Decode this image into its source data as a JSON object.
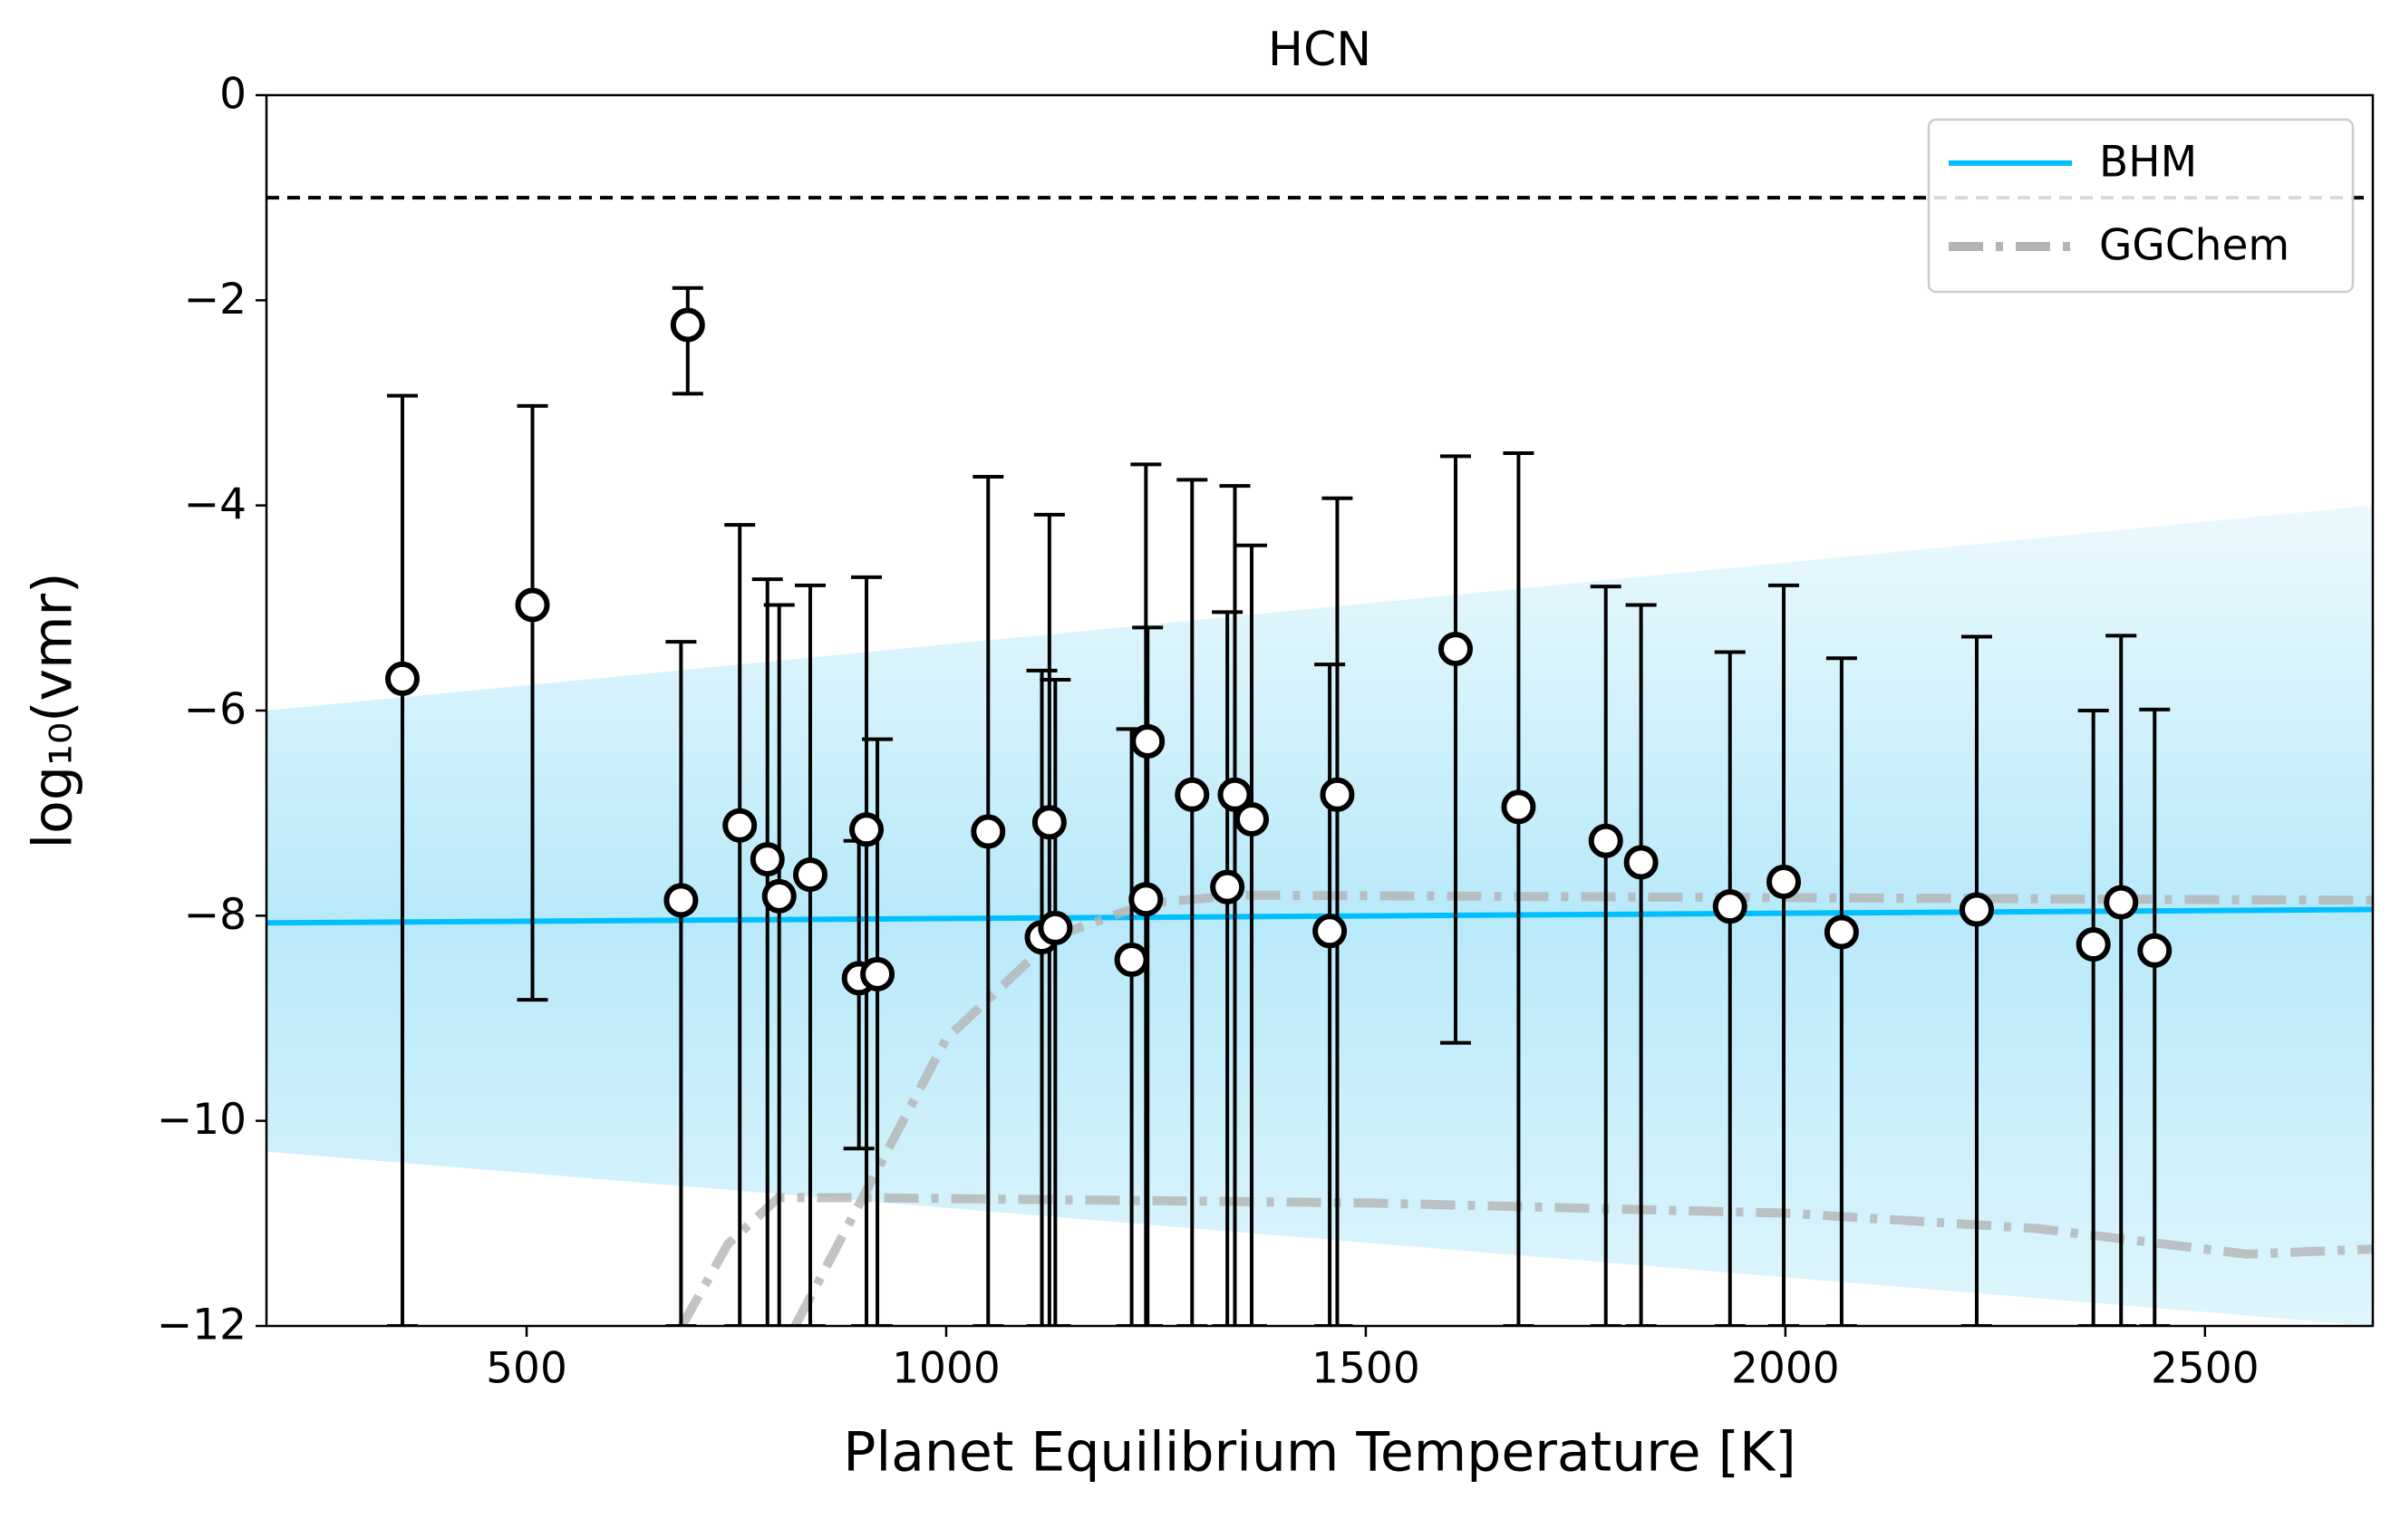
{
  "chart_data": {
    "type": "errorbar",
    "title": "HCN",
    "x_label": "Planet Equilibrium Temperature [K]",
    "y_label": "log₁₀(vmr)",
    "xlim": [
      190,
      2700
    ],
    "ylim": [
      -12,
      0
    ],
    "xticks": [
      500,
      1000,
      1500,
      2000,
      2500
    ],
    "yticks": [
      {
        "value": -12,
        "label": "−12"
      },
      {
        "value": -10,
        "label": "−10"
      },
      {
        "value": -8,
        "label": "−8"
      },
      {
        "value": -6,
        "label": "−6"
      },
      {
        "value": -4,
        "label": "−4"
      },
      {
        "value": -2,
        "label": "−2"
      },
      0
    ],
    "legend_loc": "upper right",
    "hline": {
      "value": -1,
      "color": "#000000"
    },
    "band": {
      "color": "#7fd8f5",
      "x": [
        190,
        2700
      ],
      "lower": [
        -10.3,
        -12
      ],
      "upper": [
        -6,
        -4
      ]
    },
    "series": [
      {
        "name": "BHM",
        "color": "#00bfff",
        "x": [
          190,
          2700
        ],
        "values": [
          -8.07,
          -7.94
        ]
      },
      {
        "name": "GGChem",
        "color": "#b4b4b4",
        "curves": [
          {
            "x": [
              820,
              910,
              1000,
              1130,
              1240,
              1350,
              2700
            ],
            "values": [
              -12,
              -10.6,
              -9.2,
              -8.2,
              -7.88,
              -7.8,
              -7.85
            ]
          },
          {
            "x": [
              685,
              740,
              800,
              900,
              1500,
              2000,
              2300,
              2550,
              2700
            ],
            "values": [
              -12,
              -11.2,
              -10.75,
              -10.75,
              -10.8,
              -10.9,
              -11.05,
              -11.3,
              -11.25
            ]
          }
        ]
      }
    ],
    "points": {
      "x": [
        352,
        507,
        692,
        684,
        754,
        787,
        801,
        838,
        896,
        905,
        918,
        1050,
        1114,
        1123,
        1130,
        1221,
        1240,
        1238,
        1293,
        1335,
        1344,
        1364,
        1457,
        1466,
        1607,
        1682,
        1786,
        1828,
        1934,
        1998,
        2067,
        2228,
        2367,
        2400,
        2440
      ],
      "values": [
        -5.69,
        -4.97,
        -2.24,
        -7.85,
        -7.12,
        -7.45,
        -7.81,
        -7.6,
        -8.61,
        -7.16,
        -8.57,
        -7.18,
        -8.21,
        -7.09,
        -8.12,
        -8.43,
        -6.3,
        -7.84,
        -6.82,
        -7.72,
        -6.82,
        -7.06,
        -8.15,
        -6.82,
        -5.4,
        -6.94,
        -7.27,
        -7.48,
        -7.91,
        -7.67,
        -8.16,
        -7.94,
        -8.28,
        -7.87,
        -8.34
      ],
      "lower": [
        -12,
        -8.82,
        -2.91,
        -12,
        -12,
        -12,
        -12,
        -12,
        -10.27,
        -12,
        -12,
        -12,
        -12,
        -12,
        -12,
        -12,
        -12,
        -12,
        -12,
        -12,
        -12,
        -12,
        -12,
        -12,
        -9.24,
        -12,
        -12,
        -12,
        -12,
        -12,
        -12,
        -12,
        -12,
        -12,
        -12
      ],
      "upper": [
        -2.93,
        -3.03,
        -1.88,
        -5.33,
        -4.19,
        -4.72,
        -4.97,
        -4.78,
        -7.27,
        -4.7,
        -6.28,
        -3.72,
        -5.61,
        -4.09,
        -5.7,
        -6.18,
        -5.19,
        -3.6,
        -3.75,
        -5.04,
        -3.81,
        -4.39,
        -5.55,
        -3.93,
        -3.52,
        -3.49,
        -4.79,
        -4.97,
        -5.43,
        -4.78,
        -5.49,
        -5.28,
        -6.0,
        -5.27,
        -5.99
      ]
    }
  }
}
